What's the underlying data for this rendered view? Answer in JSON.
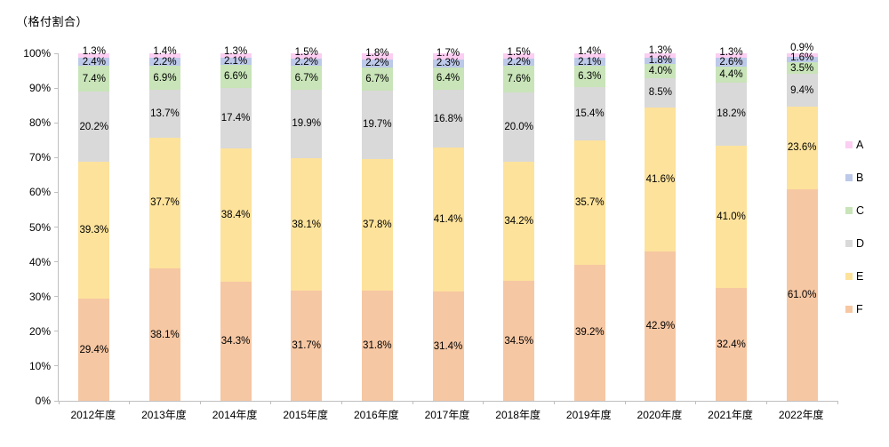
{
  "title": "（格付割合）",
  "axis_color": "#BFBFBF",
  "text_color": "#000000",
  "chart_data": {
    "type": "bar",
    "stacked": true,
    "orientation": "vertical",
    "title": "（格付割合）",
    "ylabel": "（格付割合）",
    "xlabel": "",
    "ylim": [
      0,
      100
    ],
    "y_ticks": [
      "0%",
      "10%",
      "20%",
      "30%",
      "40%",
      "50%",
      "60%",
      "70%",
      "80%",
      "90%",
      "100%"
    ],
    "grid": false,
    "legend_position": "right",
    "value_label_suffix": "%",
    "categories": [
      "2012年度",
      "2013年度",
      "2014年度",
      "2015年度",
      "2016年度",
      "2017年度",
      "2018年度",
      "2019年度",
      "2020年度",
      "2021年度",
      "2022年度"
    ],
    "series": [
      {
        "name": "A",
        "color": "#FBCEF2",
        "values": [
          1.3,
          1.4,
          1.3,
          1.5,
          1.8,
          1.7,
          1.5,
          1.4,
          1.3,
          1.3,
          0.9
        ]
      },
      {
        "name": "B",
        "color": "#BCC9E9",
        "values": [
          2.4,
          2.2,
          2.1,
          2.2,
          2.2,
          2.3,
          2.2,
          2.1,
          1.8,
          2.6,
          1.6
        ]
      },
      {
        "name": "C",
        "color": "#C8E4B8",
        "values": [
          7.4,
          6.9,
          6.6,
          6.7,
          6.7,
          6.4,
          7.6,
          6.3,
          4.0,
          4.4,
          3.5
        ]
      },
      {
        "name": "D",
        "color": "#D9D9D9",
        "values": [
          20.2,
          13.7,
          17.4,
          19.9,
          19.7,
          16.8,
          20.0,
          15.4,
          8.5,
          18.2,
          9.4
        ]
      },
      {
        "name": "E",
        "color": "#FDE29B",
        "values": [
          39.3,
          37.7,
          38.4,
          38.1,
          37.8,
          41.4,
          34.2,
          35.7,
          41.6,
          41.0,
          23.6
        ]
      },
      {
        "name": "F",
        "color": "#F6C7A3",
        "values": [
          29.4,
          38.1,
          34.3,
          31.7,
          31.8,
          31.4,
          34.5,
          39.2,
          42.9,
          32.4,
          61.0
        ]
      }
    ]
  }
}
